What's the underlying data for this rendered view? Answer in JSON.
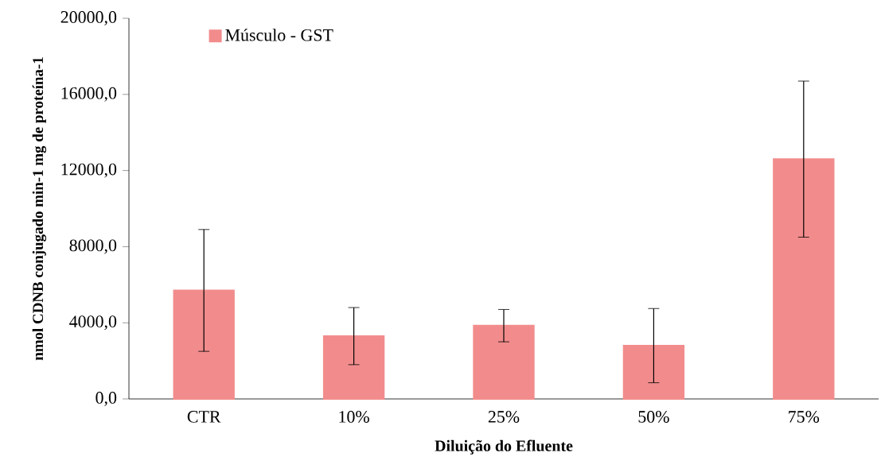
{
  "chart_data": {
    "type": "bar",
    "xlabel": "Diluição do Efluente",
    "ylabel": "nmol CDNB conjugado min-1 mg de proteína-1",
    "categories": [
      "CTR",
      "10%",
      "25%",
      "50%",
      "75%"
    ],
    "series": [
      {
        "name": "Músculo - GST",
        "color": "#f28c8c",
        "values": [
          5700,
          3300,
          3850,
          2800,
          12600
        ],
        "errors": [
          3200,
          1500,
          850,
          1950,
          4100
        ]
      }
    ],
    "ylim": [
      0,
      20000
    ],
    "yticks": [
      {
        "value": 0,
        "label": "0,0"
      },
      {
        "value": 4000,
        "label": "4000,0"
      },
      {
        "value": 8000,
        "label": "8000,0"
      },
      {
        "value": 12000,
        "label": "12000,0"
      },
      {
        "value": 16000,
        "label": "16000,0"
      },
      {
        "value": 20000,
        "label": "20000,0"
      }
    ],
    "legend": "top left"
  }
}
